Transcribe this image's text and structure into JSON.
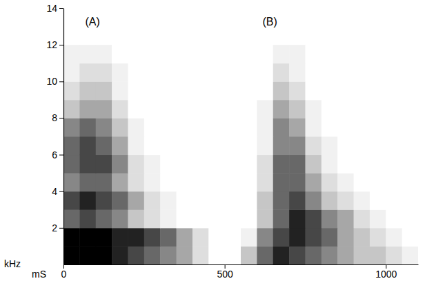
{
  "chart_data": {
    "type": "heatmap",
    "x_label": "mS",
    "y_label": "kHz",
    "xlim": [
      0,
      1100
    ],
    "ylim": [
      0,
      14
    ],
    "xticks": [
      0,
      500,
      1000
    ],
    "yticks": [
      2,
      4,
      6,
      8,
      10,
      12,
      14
    ],
    "x_bins": [
      0,
      50,
      100,
      150,
      200,
      250,
      300,
      350,
      400,
      450,
      500,
      550,
      600,
      650,
      700,
      750,
      800,
      850,
      900,
      950,
      1000,
      1050,
      1100
    ],
    "y_bins": [
      0,
      1,
      2,
      3,
      4,
      5,
      6,
      7,
      8,
      9,
      10,
      11,
      12
    ],
    "cells": [
      [
        9,
        9,
        9,
        8,
        7,
        6,
        5,
        4,
        2,
        0,
        0,
        3,
        6,
        8,
        7,
        6,
        5,
        4,
        3,
        3,
        2,
        1
      ],
      [
        9,
        9,
        9,
        8,
        8,
        7,
        6,
        4,
        2,
        0,
        0,
        1,
        5,
        7,
        8,
        7,
        6,
        4,
        3,
        2,
        1,
        0
      ],
      [
        6,
        7,
        6,
        5,
        3,
        2,
        1,
        0,
        0,
        0,
        0,
        0,
        3,
        6,
        8,
        7,
        5,
        4,
        2,
        1,
        0,
        0
      ],
      [
        7,
        8,
        7,
        6,
        4,
        2,
        1,
        0,
        0,
        0,
        0,
        0,
        3,
        6,
        7,
        5,
        3,
        2,
        1,
        0,
        0,
        0
      ],
      [
        5,
        6,
        6,
        4,
        2,
        1,
        0,
        0,
        0,
        0,
        0,
        0,
        2,
        6,
        6,
        4,
        2,
        1,
        0,
        0,
        0,
        0
      ],
      [
        6,
        7,
        7,
        5,
        2,
        1,
        0,
        0,
        0,
        0,
        0,
        0,
        2,
        6,
        6,
        3,
        1,
        0,
        0,
        0,
        0,
        0
      ],
      [
        6,
        7,
        6,
        4,
        1,
        0,
        0,
        0,
        0,
        0,
        0,
        0,
        1,
        5,
        5,
        2,
        1,
        0,
        0,
        0,
        0,
        0
      ],
      [
        5,
        6,
        5,
        3,
        1,
        0,
        0,
        0,
        0,
        0,
        0,
        0,
        1,
        5,
        4,
        1,
        0,
        0,
        0,
        0,
        0,
        0
      ],
      [
        3,
        4,
        4,
        2,
        0,
        0,
        0,
        0,
        0,
        0,
        0,
        0,
        1,
        4,
        3,
        1,
        0,
        0,
        0,
        0,
        0,
        0
      ],
      [
        2,
        3,
        3,
        1,
        0,
        0,
        0,
        0,
        0,
        0,
        0,
        0,
        0,
        3,
        2,
        0,
        0,
        0,
        0,
        0,
        0,
        0
      ],
      [
        1,
        2,
        2,
        1,
        0,
        0,
        0,
        0,
        0,
        0,
        0,
        0,
        0,
        2,
        1,
        0,
        0,
        0,
        0,
        0,
        0,
        0
      ],
      [
        1,
        1,
        1,
        0,
        0,
        0,
        0,
        0,
        0,
        0,
        0,
        0,
        0,
        1,
        1,
        0,
        0,
        0,
        0,
        0,
        0,
        0
      ]
    ],
    "annotations": [
      {
        "text": "(A)",
        "x": 90,
        "y": 13.2
      },
      {
        "text": "(B)",
        "x": 640,
        "y": 13.2
      }
    ]
  }
}
